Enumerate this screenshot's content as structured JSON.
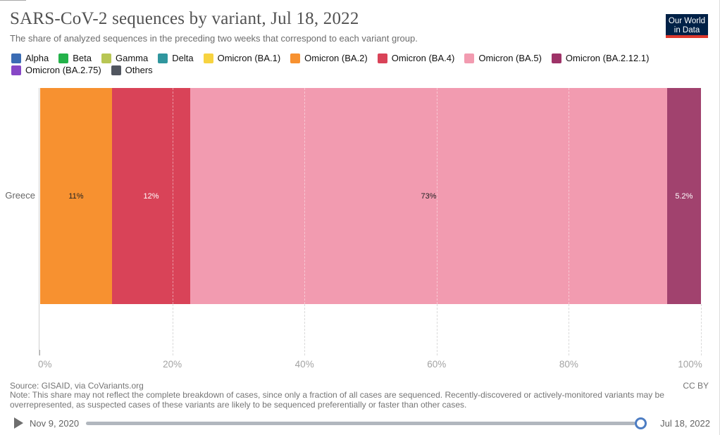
{
  "header": {
    "title": "SARS-CoV-2 sequences by variant, Jul 18, 2022",
    "subtitle": "The share of analyzed sequences in the preceding two weeks that correspond to each variant group.",
    "logo": {
      "line1": "Our World",
      "line2": "in Data",
      "bg_color": "#002147",
      "accent_color": "#e0392d"
    }
  },
  "legend": {
    "items": [
      {
        "label": "Alpha",
        "color": "#3b6cb4"
      },
      {
        "label": "Beta",
        "color": "#24b24a"
      },
      {
        "label": "Gamma",
        "color": "#b8c654"
      },
      {
        "label": "Delta",
        "color": "#30969e"
      },
      {
        "label": "Omicron (BA.1)",
        "color": "#f7d340"
      },
      {
        "label": "Omicron (BA.2)",
        "color": "#f79130"
      },
      {
        "label": "Omicron (BA.4)",
        "color": "#d94358"
      },
      {
        "label": "Omicron (BA.5)",
        "color": "#f29bb0"
      },
      {
        "label": "Omicron (BA.2.12.1)",
        "color": "#9e3368"
      },
      {
        "label": "Omicron (BA.2.75)",
        "color": "#8747c6"
      },
      {
        "label": "Others",
        "color": "#51565f"
      }
    ]
  },
  "chart_data": {
    "type": "bar",
    "variant": "horizontal-stacked",
    "categories": [
      "Greece"
    ],
    "series": [
      {
        "name": "Omicron (BA.2)",
        "value": 11,
        "label": "11%",
        "color": "#f79130",
        "label_color": "#222222"
      },
      {
        "name": "Omicron (BA.4)",
        "value": 12,
        "label": "12%",
        "color": "#d94358",
        "label_color": "#ffffff"
      },
      {
        "name": "Omicron (BA.5)",
        "value": 73,
        "label": "73%",
        "color": "#f29bb0",
        "label_color": "#222222"
      },
      {
        "name": "Omicron (BA.2.12.1)",
        "value": 5.2,
        "label": "5.2%",
        "color": "#a1426e",
        "label_color": "#ffffff"
      }
    ],
    "xlim": [
      0,
      100
    ],
    "x_ticks": [
      "0%",
      "20%",
      "40%",
      "60%",
      "80%",
      "100%"
    ],
    "grid": "dashed-vertical",
    "legend_position": "top"
  },
  "footer": {
    "source": "Source: GISAID, via CoVariants.org",
    "note": "Note: This share may not reflect the complete breakdown of cases, since only a fraction of all cases are sequenced. Recently-discovered or actively-monitored variants may be overrepresented, as suspected cases of these variants are likely to be sequenced preferentially or faster than other cases.",
    "license": "CC BY"
  },
  "timeline": {
    "start_date": "Nov 9, 2020",
    "end_date": "Jul 18, 2022",
    "track_color": "#b1b7be",
    "handle_color": "#4d7dc3"
  }
}
